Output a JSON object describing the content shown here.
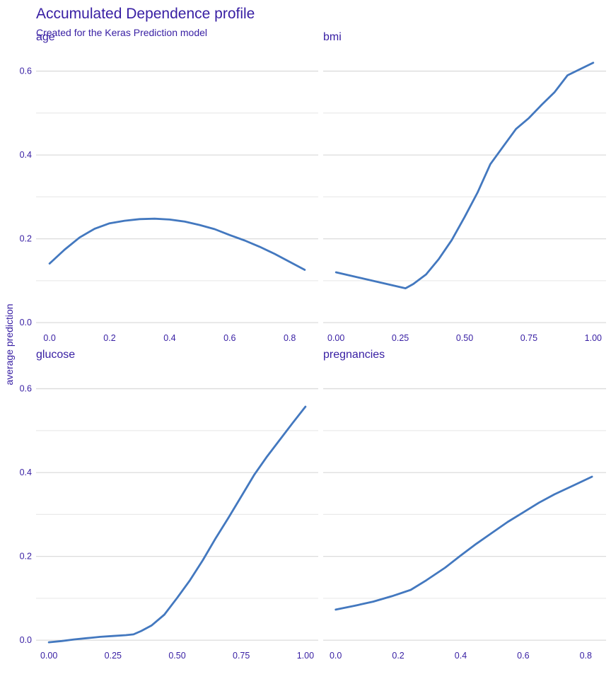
{
  "chart_data": {
    "type": "line",
    "title": "Accumulated Dependence profile",
    "subtitle": "Created for the Keras Prediction model",
    "ylabel": "average prediction",
    "line_color": "#4378bf",
    "text_color": "#371ea3",
    "grid": true,
    "shared_y": {
      "ylim": [
        -0.02,
        0.66
      ],
      "ticks": [
        0.0,
        0.2,
        0.4,
        0.6
      ],
      "tick_labels": [
        "0.0",
        "0.2",
        "0.4",
        "0.6"
      ]
    },
    "panels": [
      {
        "title": "age",
        "xticks": [
          0.0,
          0.2,
          0.4,
          0.6,
          0.8
        ],
        "xtick_labels": [
          "0.0",
          "0.2",
          "0.4",
          "0.6",
          "0.8"
        ],
        "xlim": [
          -0.045,
          0.895
        ],
        "x": [
          0.0,
          0.05,
          0.1,
          0.15,
          0.2,
          0.25,
          0.3,
          0.35,
          0.4,
          0.45,
          0.5,
          0.55,
          0.6,
          0.65,
          0.7,
          0.75,
          0.8,
          0.85
        ],
        "y": [
          0.141,
          0.174,
          0.203,
          0.224,
          0.237,
          0.243,
          0.247,
          0.248,
          0.246,
          0.241,
          0.233,
          0.223,
          0.209,
          0.196,
          0.181,
          0.164,
          0.145,
          0.126
        ]
      },
      {
        "title": "bmi",
        "xticks": [
          0.0,
          0.25,
          0.5,
          0.75,
          1.0
        ],
        "xtick_labels": [
          "0.00",
          "0.25",
          "0.50",
          "0.75",
          "1.00"
        ],
        "xlim": [
          -0.05,
          1.05
        ],
        "x": [
          0.0,
          0.27,
          0.3,
          0.35,
          0.4,
          0.45,
          0.5,
          0.55,
          0.6,
          0.65,
          0.7,
          0.75,
          0.8,
          0.85,
          0.9,
          0.95,
          1.0
        ],
        "y": [
          0.12,
          0.082,
          0.092,
          0.115,
          0.152,
          0.197,
          0.252,
          0.31,
          0.378,
          0.42,
          0.462,
          0.488,
          0.52,
          0.55,
          0.59,
          0.605,
          0.62
        ]
      },
      {
        "title": "glucose",
        "xticks": [
          0.0,
          0.25,
          0.5,
          0.75,
          1.0
        ],
        "xtick_labels": [
          "0.00",
          "0.25",
          "0.50",
          "0.75",
          "1.00"
        ],
        "xlim": [
          -0.05,
          1.05
        ],
        "x": [
          0.0,
          0.05,
          0.1,
          0.15,
          0.2,
          0.25,
          0.3,
          0.33,
          0.36,
          0.4,
          0.45,
          0.5,
          0.55,
          0.6,
          0.65,
          0.7,
          0.75,
          0.8,
          0.85,
          0.9,
          0.95,
          1.0
        ],
        "y": [
          -0.005,
          -0.002,
          0.002,
          0.005,
          0.008,
          0.01,
          0.012,
          0.014,
          0.022,
          0.035,
          0.061,
          0.101,
          0.143,
          0.191,
          0.243,
          0.292,
          0.343,
          0.394,
          0.438,
          0.478,
          0.518,
          0.557
        ]
      },
      {
        "title": "pregnancies",
        "xticks": [
          0.0,
          0.2,
          0.4,
          0.6,
          0.8
        ],
        "xtick_labels": [
          "0.0",
          "0.2",
          "0.4",
          "0.6",
          "0.8"
        ],
        "xlim": [
          -0.04,
          0.865
        ],
        "x": [
          0.0,
          0.06,
          0.12,
          0.18,
          0.24,
          0.29,
          0.35,
          0.4,
          0.45,
          0.5,
          0.55,
          0.6,
          0.65,
          0.7,
          0.76,
          0.82
        ],
        "y": [
          0.073,
          0.082,
          0.092,
          0.105,
          0.12,
          0.143,
          0.173,
          0.202,
          0.23,
          0.256,
          0.282,
          0.305,
          0.328,
          0.348,
          0.369,
          0.39
        ]
      }
    ]
  }
}
